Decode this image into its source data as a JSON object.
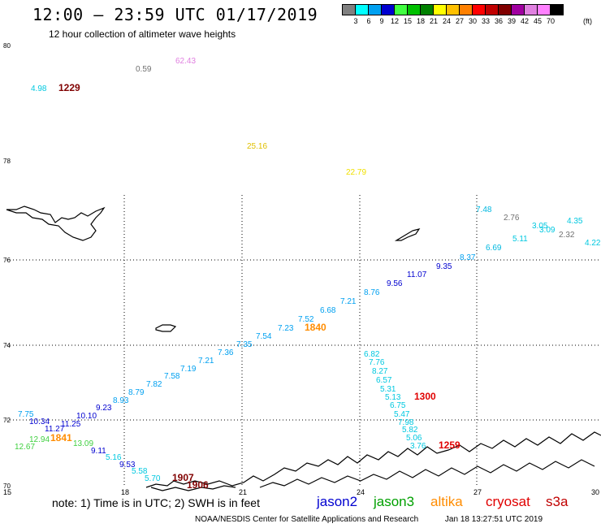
{
  "title": "12:00 – 23:59 UTC 01/17/2019",
  "subtitle": "12 hour collection of altimeter wave heights",
  "scale": {
    "colors": [
      "#808080",
      "#00ffff",
      "#00a0f0",
      "#0000d0",
      "#40ff40",
      "#00c000",
      "#008000",
      "#ffff00",
      "#ffc000",
      "#ff8000",
      "#ff0000",
      "#c00000",
      "#800000",
      "#a000a0",
      "#e080e0",
      "#ff80ff",
      "#000000"
    ],
    "labels": [
      "3",
      "6",
      "9",
      "12",
      "15",
      "18",
      "21",
      "24",
      "27",
      "30",
      "33",
      "36",
      "39",
      "42",
      "45",
      "70"
    ],
    "unit": "(ft)"
  },
  "axes": {
    "lat_labels": [
      "80",
      "78",
      "76",
      "74",
      "72",
      "70"
    ],
    "lon_labels": [
      "15",
      "18",
      "21",
      "24",
      "27",
      "30"
    ]
  },
  "note": "note:  1) Time is in UTC;  2) SWH is in feet",
  "satellites": [
    {
      "name": "jason2",
      "color": "#0000d0"
    },
    {
      "name": "jason3",
      "color": "#00a000"
    },
    {
      "name": "altika",
      "color": "#ff8c00"
    },
    {
      "name": "cryosat",
      "color": "#e00000"
    },
    {
      "name": "s3a",
      "color": "#c00000"
    }
  ],
  "footer": {
    "credit": "NOAA/NESDIS Center for Satellite Applications and Research",
    "timestamp": "Jan 18 13:27:51 UTC 2019"
  },
  "observations": [
    {
      "v": "4.98",
      "c": "#00c8e0"
    },
    {
      "v": "1229",
      "c": "#800000",
      "big": true
    },
    {
      "v": "0.59",
      "c": "#707070"
    },
    {
      "v": "62.43",
      "c": "#e080e0"
    },
    {
      "v": "25.16",
      "c": "#e0c000"
    },
    {
      "v": "22.79",
      "c": "#f0e000"
    },
    {
      "v": "7.48",
      "c": "#00b8e0"
    },
    {
      "v": "2.76",
      "c": "#707070"
    },
    {
      "v": "3.05",
      "c": "#00c8e0"
    },
    {
      "v": "3.09",
      "c": "#00c8e0"
    },
    {
      "v": "2.32",
      "c": "#707070"
    },
    {
      "v": "4.35",
      "c": "#00c8e0"
    },
    {
      "v": "5.11",
      "c": "#00c8e0"
    },
    {
      "v": "4.22",
      "c": "#00c8e0"
    },
    {
      "v": "6.69",
      "c": "#00b8e0"
    },
    {
      "v": "8.37",
      "c": "#00a0f0"
    },
    {
      "v": "9.35",
      "c": "#0000d0"
    },
    {
      "v": "11.07",
      "c": "#0000d0"
    },
    {
      "v": "9.56",
      "c": "#0000d0"
    },
    {
      "v": "8.76",
      "c": "#00a0f0"
    },
    {
      "v": "7.21",
      "c": "#00a0f0"
    },
    {
      "v": "6.68",
      "c": "#00a0f0"
    },
    {
      "v": "7.52",
      "c": "#00a0f0"
    },
    {
      "v": "7.23",
      "c": "#00a0f0"
    },
    {
      "v": "1840",
      "c": "#ff8c00",
      "big": true
    },
    {
      "v": "7.54",
      "c": "#00a0f0"
    },
    {
      "v": "7.35",
      "c": "#00a0f0"
    },
    {
      "v": "7.36",
      "c": "#00a0f0"
    },
    {
      "v": "7.21",
      "c": "#00a0f0"
    },
    {
      "v": "7.19",
      "c": "#00a0f0"
    },
    {
      "v": "7.58",
      "c": "#00a0f0"
    },
    {
      "v": "7.82",
      "c": "#00a0f0"
    },
    {
      "v": "8.79",
      "c": "#00a0f0"
    },
    {
      "v": "8.93",
      "c": "#00a0f0"
    },
    {
      "v": "9.23",
      "c": "#0000d0"
    },
    {
      "v": "10.10",
      "c": "#0000d0"
    },
    {
      "v": "7.75",
      "c": "#00a0f0"
    },
    {
      "v": "10.34",
      "c": "#0000d0"
    },
    {
      "v": "11.25",
      "c": "#0000d0"
    },
    {
      "v": "11.27",
      "c": "#0000d0"
    },
    {
      "v": "12.94",
      "c": "#40d040"
    },
    {
      "v": "1841",
      "c": "#ff8c00",
      "big": true
    },
    {
      "v": "13.09",
      "c": "#40d040"
    },
    {
      "v": "12.67",
      "c": "#40d040"
    },
    {
      "v": "9.11",
      "c": "#0000d0"
    },
    {
      "v": "5.16",
      "c": "#00c8e0"
    },
    {
      "v": "9.53",
      "c": "#0000d0"
    },
    {
      "v": "5.58",
      "c": "#00c8e0"
    },
    {
      "v": "5.70",
      "c": "#00c8e0"
    },
    {
      "v": "1907",
      "c": "#800000",
      "big": true
    },
    {
      "v": "1906",
      "c": "#800000",
      "big": true
    },
    {
      "v": "6.82",
      "c": "#00c8e0"
    },
    {
      "v": "7.76",
      "c": "#00c8e0"
    },
    {
      "v": "8.27",
      "c": "#00c8e0"
    },
    {
      "v": "6.57",
      "c": "#00c8e0"
    },
    {
      "v": "5.31",
      "c": "#00c8e0"
    },
    {
      "v": "5.13",
      "c": "#00c8e0"
    },
    {
      "v": "1300",
      "c": "#e00000",
      "big": true
    },
    {
      "v": "6.75",
      "c": "#00c8e0"
    },
    {
      "v": "5.47",
      "c": "#00c8e0"
    },
    {
      "v": "7.98",
      "c": "#00c8e0"
    },
    {
      "v": "5.82",
      "c": "#00c8e0"
    },
    {
      "v": "5.06",
      "c": "#00c8e0"
    },
    {
      "v": "3.76",
      "c": "#00c8e0"
    },
    {
      "v": "1259",
      "c": "#e00000",
      "big": true
    }
  ]
}
